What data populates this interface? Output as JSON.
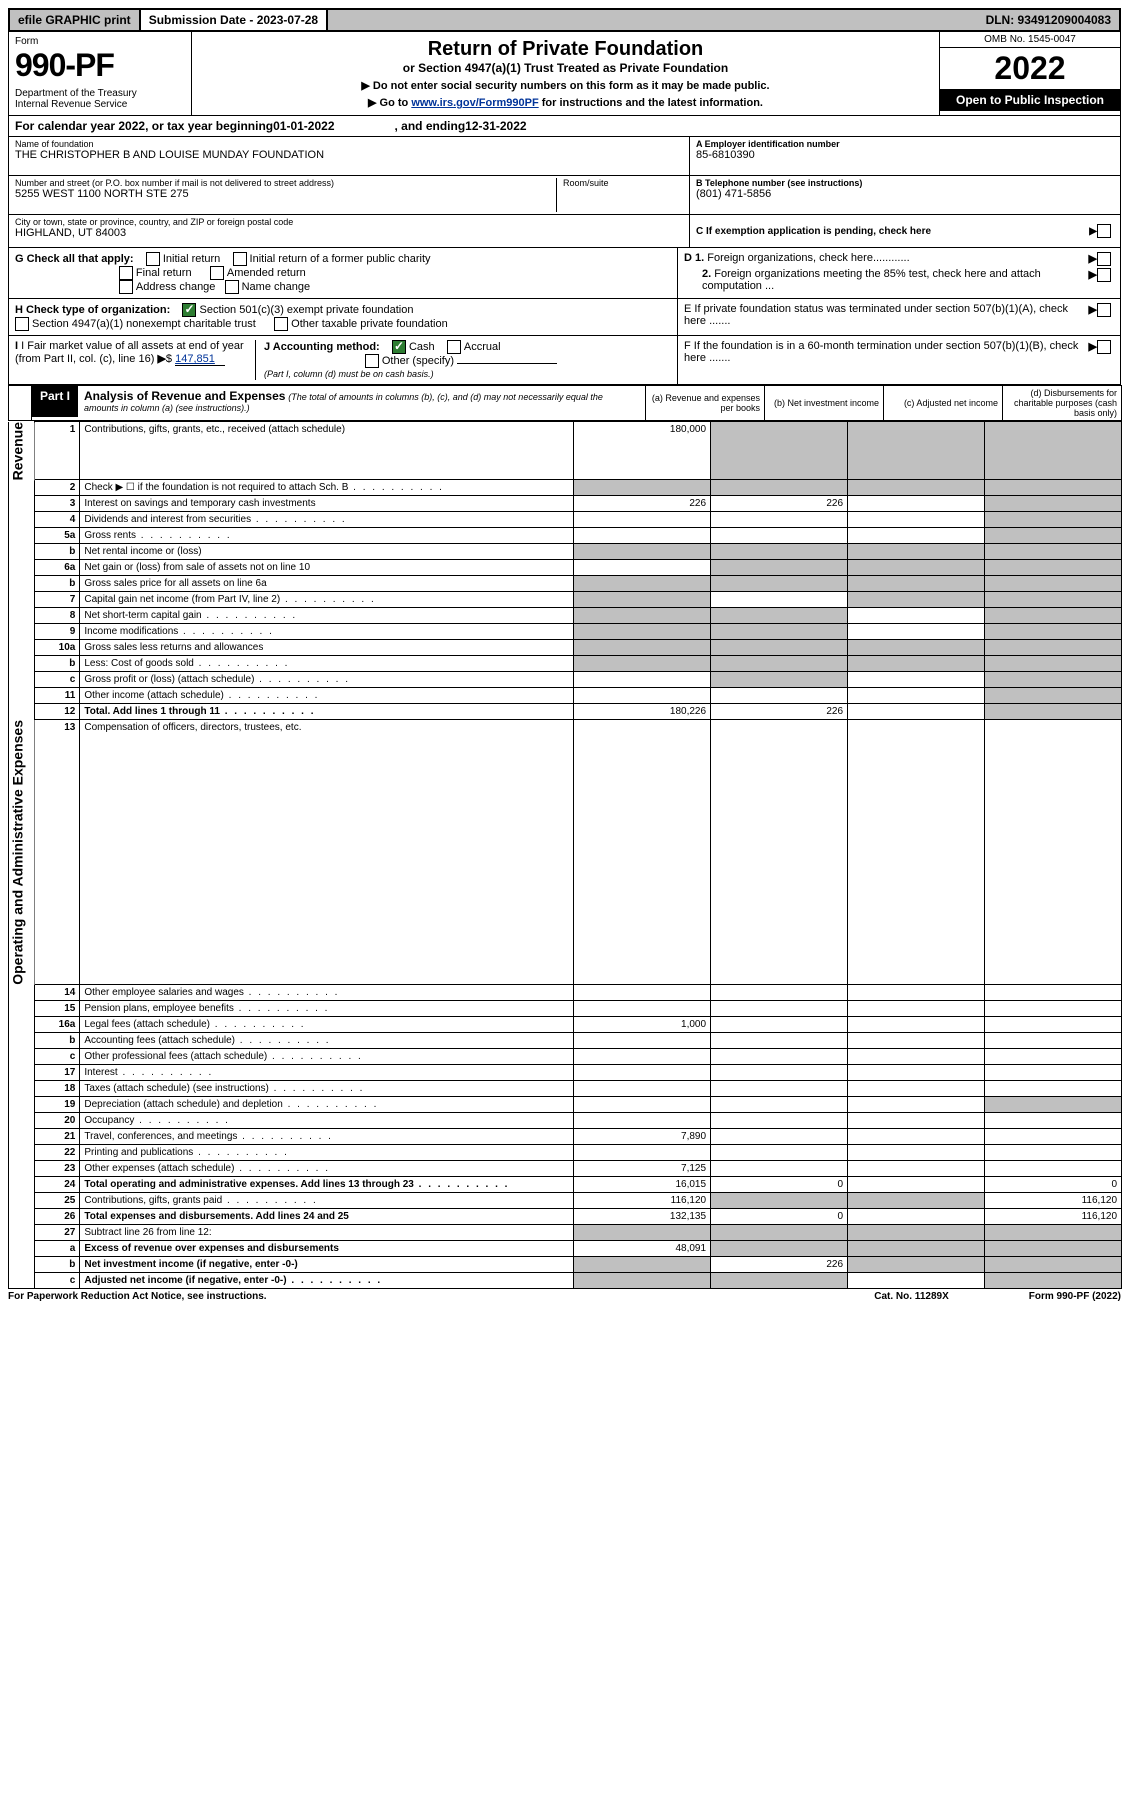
{
  "topbar": {
    "efile": "efile GRAPHIC print",
    "subdate_label": "Submission Date - 2023-07-28",
    "dln": "DLN: 93491209004083"
  },
  "header": {
    "form_label": "Form",
    "form_no": "990-PF",
    "dept": "Department of the Treasury\nInternal Revenue Service",
    "title": "Return of Private Foundation",
    "subtitle": "or Section 4947(a)(1) Trust Treated as Private Foundation",
    "inst1": "▶ Do not enter social security numbers on this form as it may be made public.",
    "inst2_pre": "▶ Go to ",
    "inst2_link": "www.irs.gov/Form990PF",
    "inst2_post": " for instructions and the latest information.",
    "omb": "OMB No. 1545-0047",
    "year": "2022",
    "open": "Open to Public Inspection"
  },
  "cal": {
    "pre": "For calendar year 2022, or tax year beginning ",
    "begin": "01-01-2022",
    "mid": ", and ending ",
    "end": "12-31-2022"
  },
  "id": {
    "name_label": "Name of foundation",
    "name": "THE CHRISTOPHER B AND LOUISE MUNDAY FOUNDATION",
    "addr_label": "Number and street (or P.O. box number if mail is not delivered to street address)",
    "addr": "5255 WEST 1100 NORTH STE 275",
    "room_label": "Room/suite",
    "city_label": "City or town, state or province, country, and ZIP or foreign postal code",
    "city": "HIGHLAND, UT  84003",
    "a_label": "A Employer identification number",
    "a_val": "85-6810390",
    "b_label": "B Telephone number (see instructions)",
    "b_val": "(801) 471-5856",
    "c_label": "C If exemption application is pending, check here",
    "d1": "D 1. Foreign organizations, check here............",
    "d2": "2. Foreign organizations meeting the 85% test, check here and attach computation ...",
    "e": "E  If private foundation status was terminated under section 507(b)(1)(A), check here .......",
    "f": "F  If the foundation is in a 60-month termination under section 507(b)(1)(B), check here .......",
    "g_label": "G Check all that apply:",
    "g_opts": [
      "Initial return",
      "Initial return of a former public charity",
      "Final return",
      "Amended return",
      "Address change",
      "Name change"
    ],
    "h_label": "H Check type of organization:",
    "h_opts": [
      "Section 501(c)(3) exempt private foundation",
      "Section 4947(a)(1) nonexempt charitable trust",
      "Other taxable private foundation"
    ],
    "i_label": "I Fair market value of all assets at end of year (from Part II, col. (c), line 16)",
    "i_val": "147,851",
    "j_label": "J Accounting method:",
    "j_cash": "Cash",
    "j_accrual": "Accrual",
    "j_other": "Other (specify)",
    "j_note": "(Part I, column (d) must be on cash basis.)"
  },
  "part1": {
    "hdr": "Part I",
    "title": "Analysis of Revenue and Expenses",
    "title_note": "(The total of amounts in columns (b), (c), and (d) may not necessarily equal the amounts in column (a) (see instructions).)",
    "col_a": "(a) Revenue and expenses per books",
    "col_b": "(b) Net investment income",
    "col_c": "(c) Adjusted net income",
    "col_d": "(d) Disbursements for charitable purposes (cash basis only)",
    "vlabel_rev": "Revenue",
    "vlabel_exp": "Operating and Administrative Expenses"
  },
  "rows": [
    {
      "n": "1",
      "desc": "Contributions, gifts, grants, etc., received (attach schedule)",
      "a": "180,000",
      "b": "",
      "c": "",
      "d": "",
      "shade": [
        "b",
        "c",
        "d"
      ]
    },
    {
      "n": "2",
      "desc": "Check ▶ ☐ if the foundation is not required to attach Sch. B",
      "a": "",
      "b": "",
      "c": "",
      "d": "",
      "shade": [
        "a",
        "b",
        "c",
        "d"
      ],
      "dots": true
    },
    {
      "n": "3",
      "desc": "Interest on savings and temporary cash investments",
      "a": "226",
      "b": "226",
      "c": "",
      "d": "",
      "shade": [
        "d"
      ]
    },
    {
      "n": "4",
      "desc": "Dividends and interest from securities",
      "a": "",
      "b": "",
      "c": "",
      "d": "",
      "shade": [
        "d"
      ],
      "dots": true
    },
    {
      "n": "5a",
      "desc": "Gross rents",
      "a": "",
      "b": "",
      "c": "",
      "d": "",
      "shade": [
        "d"
      ],
      "dots": true
    },
    {
      "n": "b",
      "desc": "Net rental income or (loss)",
      "a": "",
      "b": "",
      "c": "",
      "d": "",
      "shade": [
        "a",
        "b",
        "c",
        "d"
      ]
    },
    {
      "n": "6a",
      "desc": "Net gain or (loss) from sale of assets not on line 10",
      "a": "",
      "b": "",
      "c": "",
      "d": "",
      "shade": [
        "b",
        "c",
        "d"
      ]
    },
    {
      "n": "b",
      "desc": "Gross sales price for all assets on line 6a",
      "a": "",
      "b": "",
      "c": "",
      "d": "",
      "shade": [
        "a",
        "b",
        "c",
        "d"
      ]
    },
    {
      "n": "7",
      "desc": "Capital gain net income (from Part IV, line 2)",
      "a": "",
      "b": "",
      "c": "",
      "d": "",
      "shade": [
        "a",
        "c",
        "d"
      ],
      "dots": true
    },
    {
      "n": "8",
      "desc": "Net short-term capital gain",
      "a": "",
      "b": "",
      "c": "",
      "d": "",
      "shade": [
        "a",
        "b",
        "d"
      ],
      "dots": true
    },
    {
      "n": "9",
      "desc": "Income modifications",
      "a": "",
      "b": "",
      "c": "",
      "d": "",
      "shade": [
        "a",
        "b",
        "d"
      ],
      "dots": true
    },
    {
      "n": "10a",
      "desc": "Gross sales less returns and allowances",
      "a": "",
      "b": "",
      "c": "",
      "d": "",
      "shade": [
        "a",
        "b",
        "c",
        "d"
      ]
    },
    {
      "n": "b",
      "desc": "Less: Cost of goods sold",
      "a": "",
      "b": "",
      "c": "",
      "d": "",
      "shade": [
        "a",
        "b",
        "c",
        "d"
      ],
      "dots": true
    },
    {
      "n": "c",
      "desc": "Gross profit or (loss) (attach schedule)",
      "a": "",
      "b": "",
      "c": "",
      "d": "",
      "shade": [
        "b",
        "d"
      ],
      "dots": true
    },
    {
      "n": "11",
      "desc": "Other income (attach schedule)",
      "a": "",
      "b": "",
      "c": "",
      "d": "",
      "shade": [
        "d"
      ],
      "dots": true
    },
    {
      "n": "12",
      "desc": "Total. Add lines 1 through 11",
      "a": "180,226",
      "b": "226",
      "c": "",
      "d": "",
      "shade": [
        "d"
      ],
      "bold": true,
      "dots": true
    },
    {
      "n": "13",
      "desc": "Compensation of officers, directors, trustees, etc.",
      "a": "",
      "b": "",
      "c": "",
      "d": ""
    },
    {
      "n": "14",
      "desc": "Other employee salaries and wages",
      "a": "",
      "b": "",
      "c": "",
      "d": "",
      "dots": true
    },
    {
      "n": "15",
      "desc": "Pension plans, employee benefits",
      "a": "",
      "b": "",
      "c": "",
      "d": "",
      "dots": true
    },
    {
      "n": "16a",
      "desc": "Legal fees (attach schedule)",
      "a": "1,000",
      "b": "",
      "c": "",
      "d": "",
      "dots": true
    },
    {
      "n": "b",
      "desc": "Accounting fees (attach schedule)",
      "a": "",
      "b": "",
      "c": "",
      "d": "",
      "dots": true
    },
    {
      "n": "c",
      "desc": "Other professional fees (attach schedule)",
      "a": "",
      "b": "",
      "c": "",
      "d": "",
      "dots": true
    },
    {
      "n": "17",
      "desc": "Interest",
      "a": "",
      "b": "",
      "c": "",
      "d": "",
      "dots": true
    },
    {
      "n": "18",
      "desc": "Taxes (attach schedule) (see instructions)",
      "a": "",
      "b": "",
      "c": "",
      "d": "",
      "dots": true
    },
    {
      "n": "19",
      "desc": "Depreciation (attach schedule) and depletion",
      "a": "",
      "b": "",
      "c": "",
      "d": "",
      "shade": [
        "d"
      ],
      "dots": true
    },
    {
      "n": "20",
      "desc": "Occupancy",
      "a": "",
      "b": "",
      "c": "",
      "d": "",
      "dots": true
    },
    {
      "n": "21",
      "desc": "Travel, conferences, and meetings",
      "a": "7,890",
      "b": "",
      "c": "",
      "d": "",
      "dots": true
    },
    {
      "n": "22",
      "desc": "Printing and publications",
      "a": "",
      "b": "",
      "c": "",
      "d": "",
      "dots": true
    },
    {
      "n": "23",
      "desc": "Other expenses (attach schedule)",
      "a": "7,125",
      "b": "",
      "c": "",
      "d": "",
      "dots": true
    },
    {
      "n": "24",
      "desc": "Total operating and administrative expenses. Add lines 13 through 23",
      "a": "16,015",
      "b": "0",
      "c": "",
      "d": "0",
      "bold": true,
      "dots": true
    },
    {
      "n": "25",
      "desc": "Contributions, gifts, grants paid",
      "a": "116,120",
      "b": "",
      "c": "",
      "d": "116,120",
      "shade": [
        "b",
        "c"
      ],
      "dots": true
    },
    {
      "n": "26",
      "desc": "Total expenses and disbursements. Add lines 24 and 25",
      "a": "132,135",
      "b": "0",
      "c": "",
      "d": "116,120",
      "bold": true
    },
    {
      "n": "27",
      "desc": "Subtract line 26 from line 12:",
      "a": "",
      "b": "",
      "c": "",
      "d": "",
      "shade": [
        "a",
        "b",
        "c",
        "d"
      ]
    },
    {
      "n": "a",
      "desc": "Excess of revenue over expenses and disbursements",
      "a": "48,091",
      "b": "",
      "c": "",
      "d": "",
      "shade": [
        "b",
        "c",
        "d"
      ],
      "bold": true
    },
    {
      "n": "b",
      "desc": "Net investment income (if negative, enter -0-)",
      "a": "",
      "b": "226",
      "c": "",
      "d": "",
      "shade": [
        "a",
        "c",
        "d"
      ],
      "bold": true
    },
    {
      "n": "c",
      "desc": "Adjusted net income (if negative, enter -0-)",
      "a": "",
      "b": "",
      "c": "",
      "d": "",
      "shade": [
        "a",
        "b",
        "d"
      ],
      "bold": true,
      "dots": true
    }
  ],
  "footer": {
    "left": "For Paperwork Reduction Act Notice, see instructions.",
    "mid": "Cat. No. 11289X",
    "right": "Form 990-PF (2022)"
  }
}
